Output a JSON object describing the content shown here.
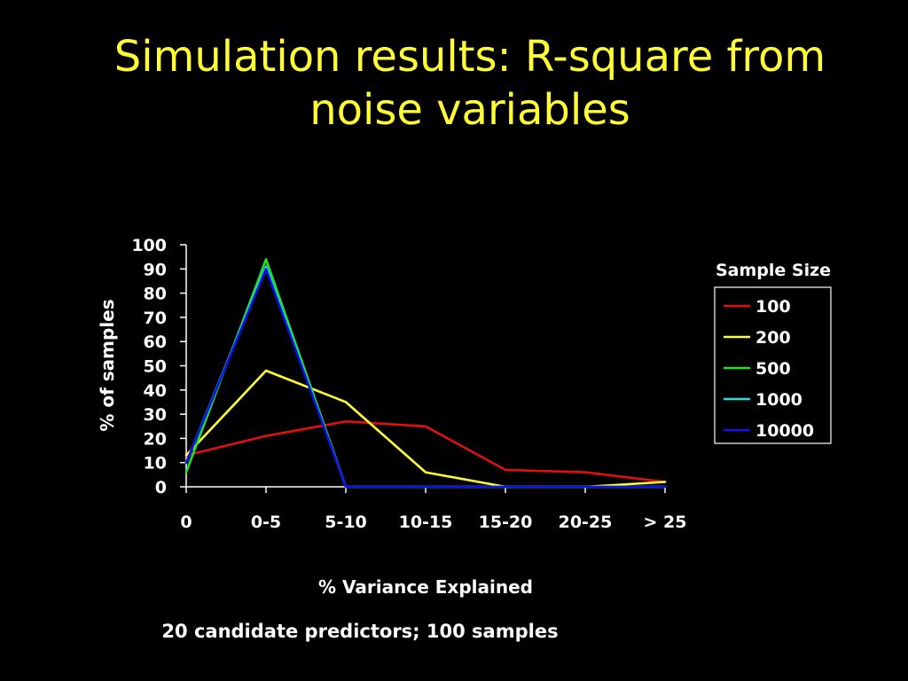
{
  "slide": {
    "title": "Simulation results: R-square from noise variables",
    "footnote": "20 candidate predictors; 100 samples"
  },
  "chart_data": {
    "type": "line",
    "title": "",
    "xlabel": "% Variance Explained",
    "ylabel": "% of samples",
    "categories": [
      "0",
      "0-5",
      "5-10",
      "10-15",
      "15-20",
      "20-25",
      "> 25"
    ],
    "ylim": [
      0,
      100
    ],
    "yticks": [
      0,
      10,
      20,
      30,
      40,
      50,
      60,
      70,
      80,
      90,
      100
    ],
    "legend_title": "Sample Size",
    "legend_position": "right",
    "grid": false,
    "series": [
      {
        "name": "100",
        "color": "#E01010",
        "values": [
          13,
          21,
          27,
          25,
          7,
          6,
          2
        ]
      },
      {
        "name": "200",
        "color": "#FFFF33",
        "values": [
          13,
          48,
          35,
          6,
          0,
          0,
          2
        ]
      },
      {
        "name": "500",
        "color": "#22E022",
        "values": [
          6,
          94,
          0,
          0,
          0,
          0,
          0
        ]
      },
      {
        "name": "1000",
        "color": "#22E0E0",
        "values": [
          10,
          91,
          0,
          0,
          0,
          0,
          0
        ]
      },
      {
        "name": "10000",
        "color": "#1010E8",
        "values": [
          10,
          90,
          0,
          0,
          0,
          0,
          0
        ]
      }
    ]
  }
}
